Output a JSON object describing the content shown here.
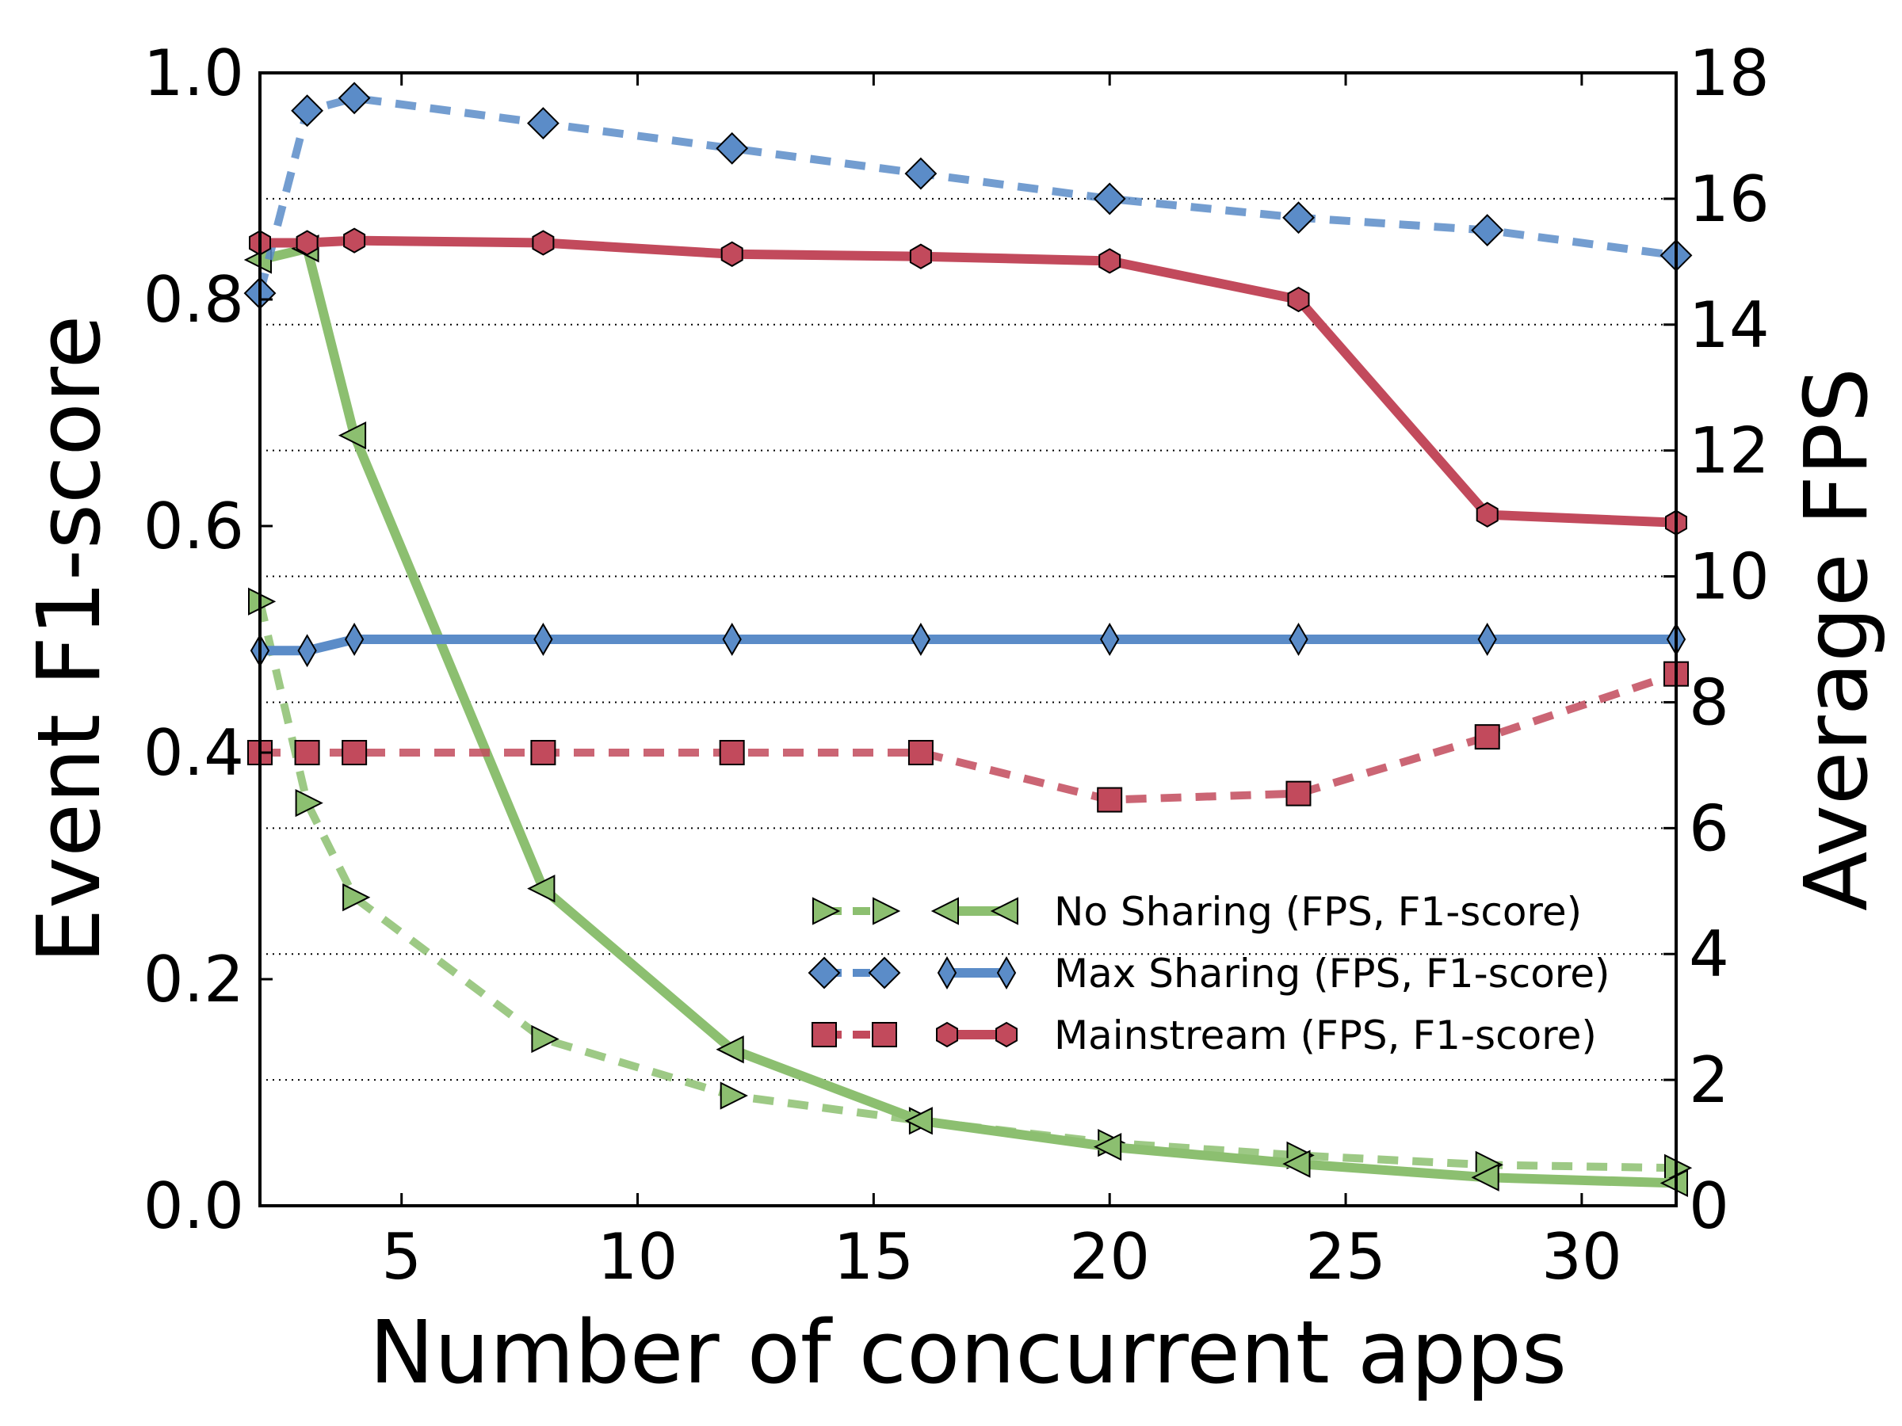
{
  "chart_data": {
    "type": "line",
    "xlabel": "Number of concurrent apps",
    "ylabel_left": "Event F1-score",
    "ylabel_right": "Average FPS",
    "xlim": [
      2,
      32
    ],
    "ylim_left": [
      0.0,
      1.0
    ],
    "ylim_right": [
      0,
      18
    ],
    "x_ticks": [
      5,
      10,
      15,
      20,
      25,
      30
    ],
    "y_left_ticks": [
      "0.0",
      "0.2",
      "0.4",
      "0.6",
      "0.8",
      "1.0"
    ],
    "y_right_ticks": [
      "0",
      "2",
      "4",
      "6",
      "8",
      "10",
      "12",
      "14",
      "16",
      "18"
    ],
    "grid": "horizontal dotted at right-axis ticks",
    "legend_placement": "lower-right",
    "x": [
      2,
      3,
      4,
      8,
      12,
      16,
      20,
      24,
      28,
      32
    ],
    "series": [
      {
        "key": "nosharing_fps",
        "axis": "right",
        "style": "dashed",
        "marker": "triangle-right",
        "color": "#8cbf70",
        "values": [
          9.6,
          6.4,
          4.9,
          2.65,
          1.75,
          1.35,
          1.0,
          0.8,
          0.65,
          0.6
        ]
      },
      {
        "key": "nosharing_f1",
        "axis": "left",
        "style": "solid",
        "marker": "triangle-left",
        "color": "#8cbf70",
        "values": [
          0.835,
          0.845,
          0.68,
          0.28,
          0.138,
          0.075,
          0.052,
          0.037,
          0.025,
          0.02
        ]
      },
      {
        "key": "maxsharing_fps",
        "axis": "right",
        "style": "dashed",
        "marker": "diamond",
        "color": "#5b8cc8",
        "values": [
          14.5,
          17.4,
          17.6,
          17.2,
          16.8,
          16.4,
          16.0,
          15.7,
          15.5,
          15.1
        ]
      },
      {
        "key": "maxsharing_f1",
        "axis": "left",
        "style": "solid",
        "marker": "thin-diamond",
        "color": "#5b8cc8",
        "values": [
          0.49,
          0.49,
          0.5,
          0.5,
          0.5,
          0.5,
          0.5,
          0.5,
          0.5,
          0.5
        ]
      },
      {
        "key": "mainstream_fps",
        "axis": "right",
        "style": "dashed",
        "marker": "square",
        "color": "#c24a5c",
        "values": [
          7.2,
          7.2,
          7.2,
          7.2,
          7.2,
          7.2,
          6.45,
          6.55,
          7.45,
          8.45
        ]
      },
      {
        "key": "mainstream_f1",
        "axis": "left",
        "style": "solid",
        "marker": "hexagon",
        "color": "#c24a5c",
        "values": [
          0.85,
          0.85,
          0.852,
          0.85,
          0.84,
          0.838,
          0.834,
          0.8,
          0.61,
          0.603
        ]
      }
    ],
    "legend": [
      {
        "label": "No Sharing (FPS, F1-score)",
        "dashed": "nosharing_fps",
        "solid": "nosharing_f1"
      },
      {
        "label": "Max Sharing (FPS, F1-score)",
        "dashed": "maxsharing_fps",
        "solid": "maxsharing_f1"
      },
      {
        "label": "Mainstream (FPS, F1-score)",
        "dashed": "mainstream_fps",
        "solid": "mainstream_f1"
      }
    ]
  }
}
